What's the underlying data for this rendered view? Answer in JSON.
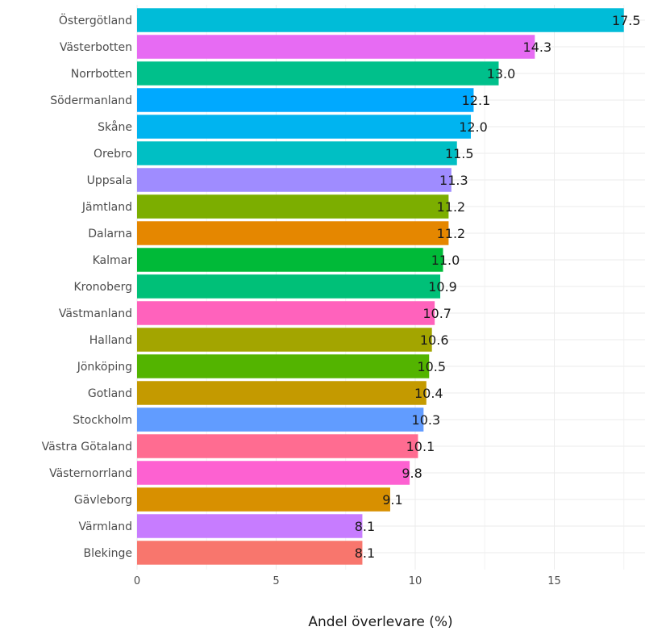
{
  "chart_data": {
    "type": "bar",
    "orientation": "horizontal",
    "xlabel": "Andel överlevare (%)",
    "xlim": [
      0,
      18
    ],
    "xticks": [
      0,
      5,
      10,
      15
    ],
    "grid": true,
    "categories": [
      "Östergötland",
      "Västerbotten",
      "Norrbotten",
      "Södermanland",
      "Skåne",
      "Orebro",
      "Uppsala",
      "Jämtland",
      "Dalarna",
      "Kalmar",
      "Kronoberg",
      "Västmanland",
      "Halland",
      "Jönköping",
      "Gotland",
      "Stockholm",
      "Västra Götaland",
      "Västernorrland",
      "Gävleborg",
      "Värmland",
      "Blekinge"
    ],
    "values": [
      17.5,
      14.3,
      13.0,
      12.1,
      12.0,
      11.5,
      11.3,
      11.2,
      11.2,
      11.0,
      10.9,
      10.7,
      10.6,
      10.5,
      10.4,
      10.3,
      10.1,
      9.8,
      9.1,
      8.1,
      8.1
    ],
    "value_labels": [
      "17.5",
      "14.3",
      "13.0",
      "12.1",
      "12.0",
      "11.5",
      "11.3",
      "11.2",
      "11.2",
      "11.0",
      "10.9",
      "10.7",
      "10.6",
      "10.5",
      "10.4",
      "10.3",
      "10.1",
      "9.8",
      "9.1",
      "8.1",
      "8.1"
    ],
    "colors": [
      "#00BCD8",
      "#E76BF3",
      "#00C08B",
      "#00A9FF",
      "#00B4F0",
      "#00BFC4",
      "#9F8CFF",
      "#7CAE00",
      "#E58700",
      "#00BA38",
      "#00C078",
      "#FF62BC",
      "#A3A500",
      "#53B400",
      "#C49A00",
      "#619CFF",
      "#FF6C91",
      "#FD61D1",
      "#D89000",
      "#C77CFF",
      "#F8766D"
    ]
  }
}
